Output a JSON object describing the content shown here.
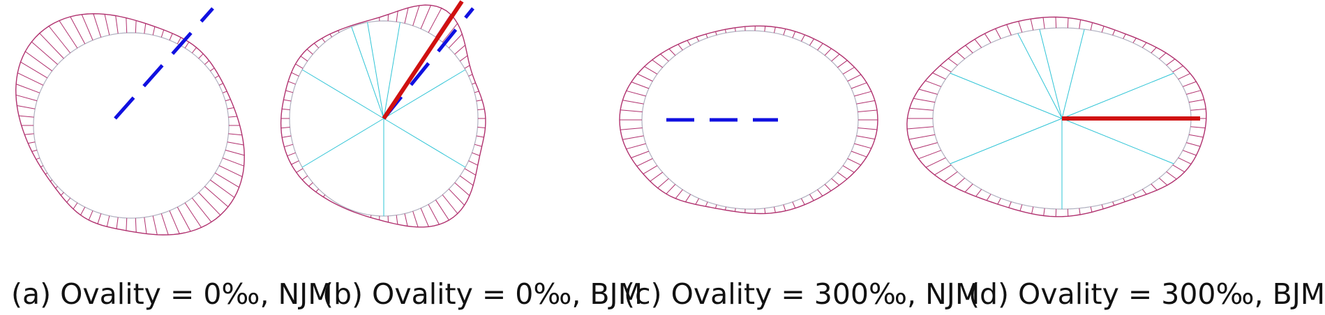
{
  "figure": {
    "panels": [
      {
        "id": "a",
        "caption": "(a) Ovality = 0‰, NJM",
        "ovality": "0‰",
        "method": "NJM",
        "show_spokes": false,
        "solid_line": false,
        "dashed_line": true
      },
      {
        "id": "b",
        "caption": "(b) Ovality = 0‰, BJM",
        "ovality": "0‰",
        "method": "BJM",
        "show_spokes": true,
        "solid_line": true,
        "dashed_line": true
      },
      {
        "id": "c",
        "caption": "(c) Ovality = 300‰, NJM",
        "ovality": "300‰",
        "method": "NJM",
        "show_spokes": false,
        "solid_line": false,
        "dashed_line": true
      },
      {
        "id": "d",
        "caption": "(d) Ovality = 300‰, BJM",
        "ovality": "300‰",
        "method": "BJM",
        "show_spokes": true,
        "solid_line": true,
        "dashed_line": false
      }
    ]
  },
  "colors": {
    "section_outline": "#b0b0c0",
    "deformation_hatch": "#b0306e",
    "spokes": "#2ec4d6",
    "dashed_axis": "#1010e0",
    "solid_axis": "#d01010",
    "caption_text": "#111111"
  }
}
